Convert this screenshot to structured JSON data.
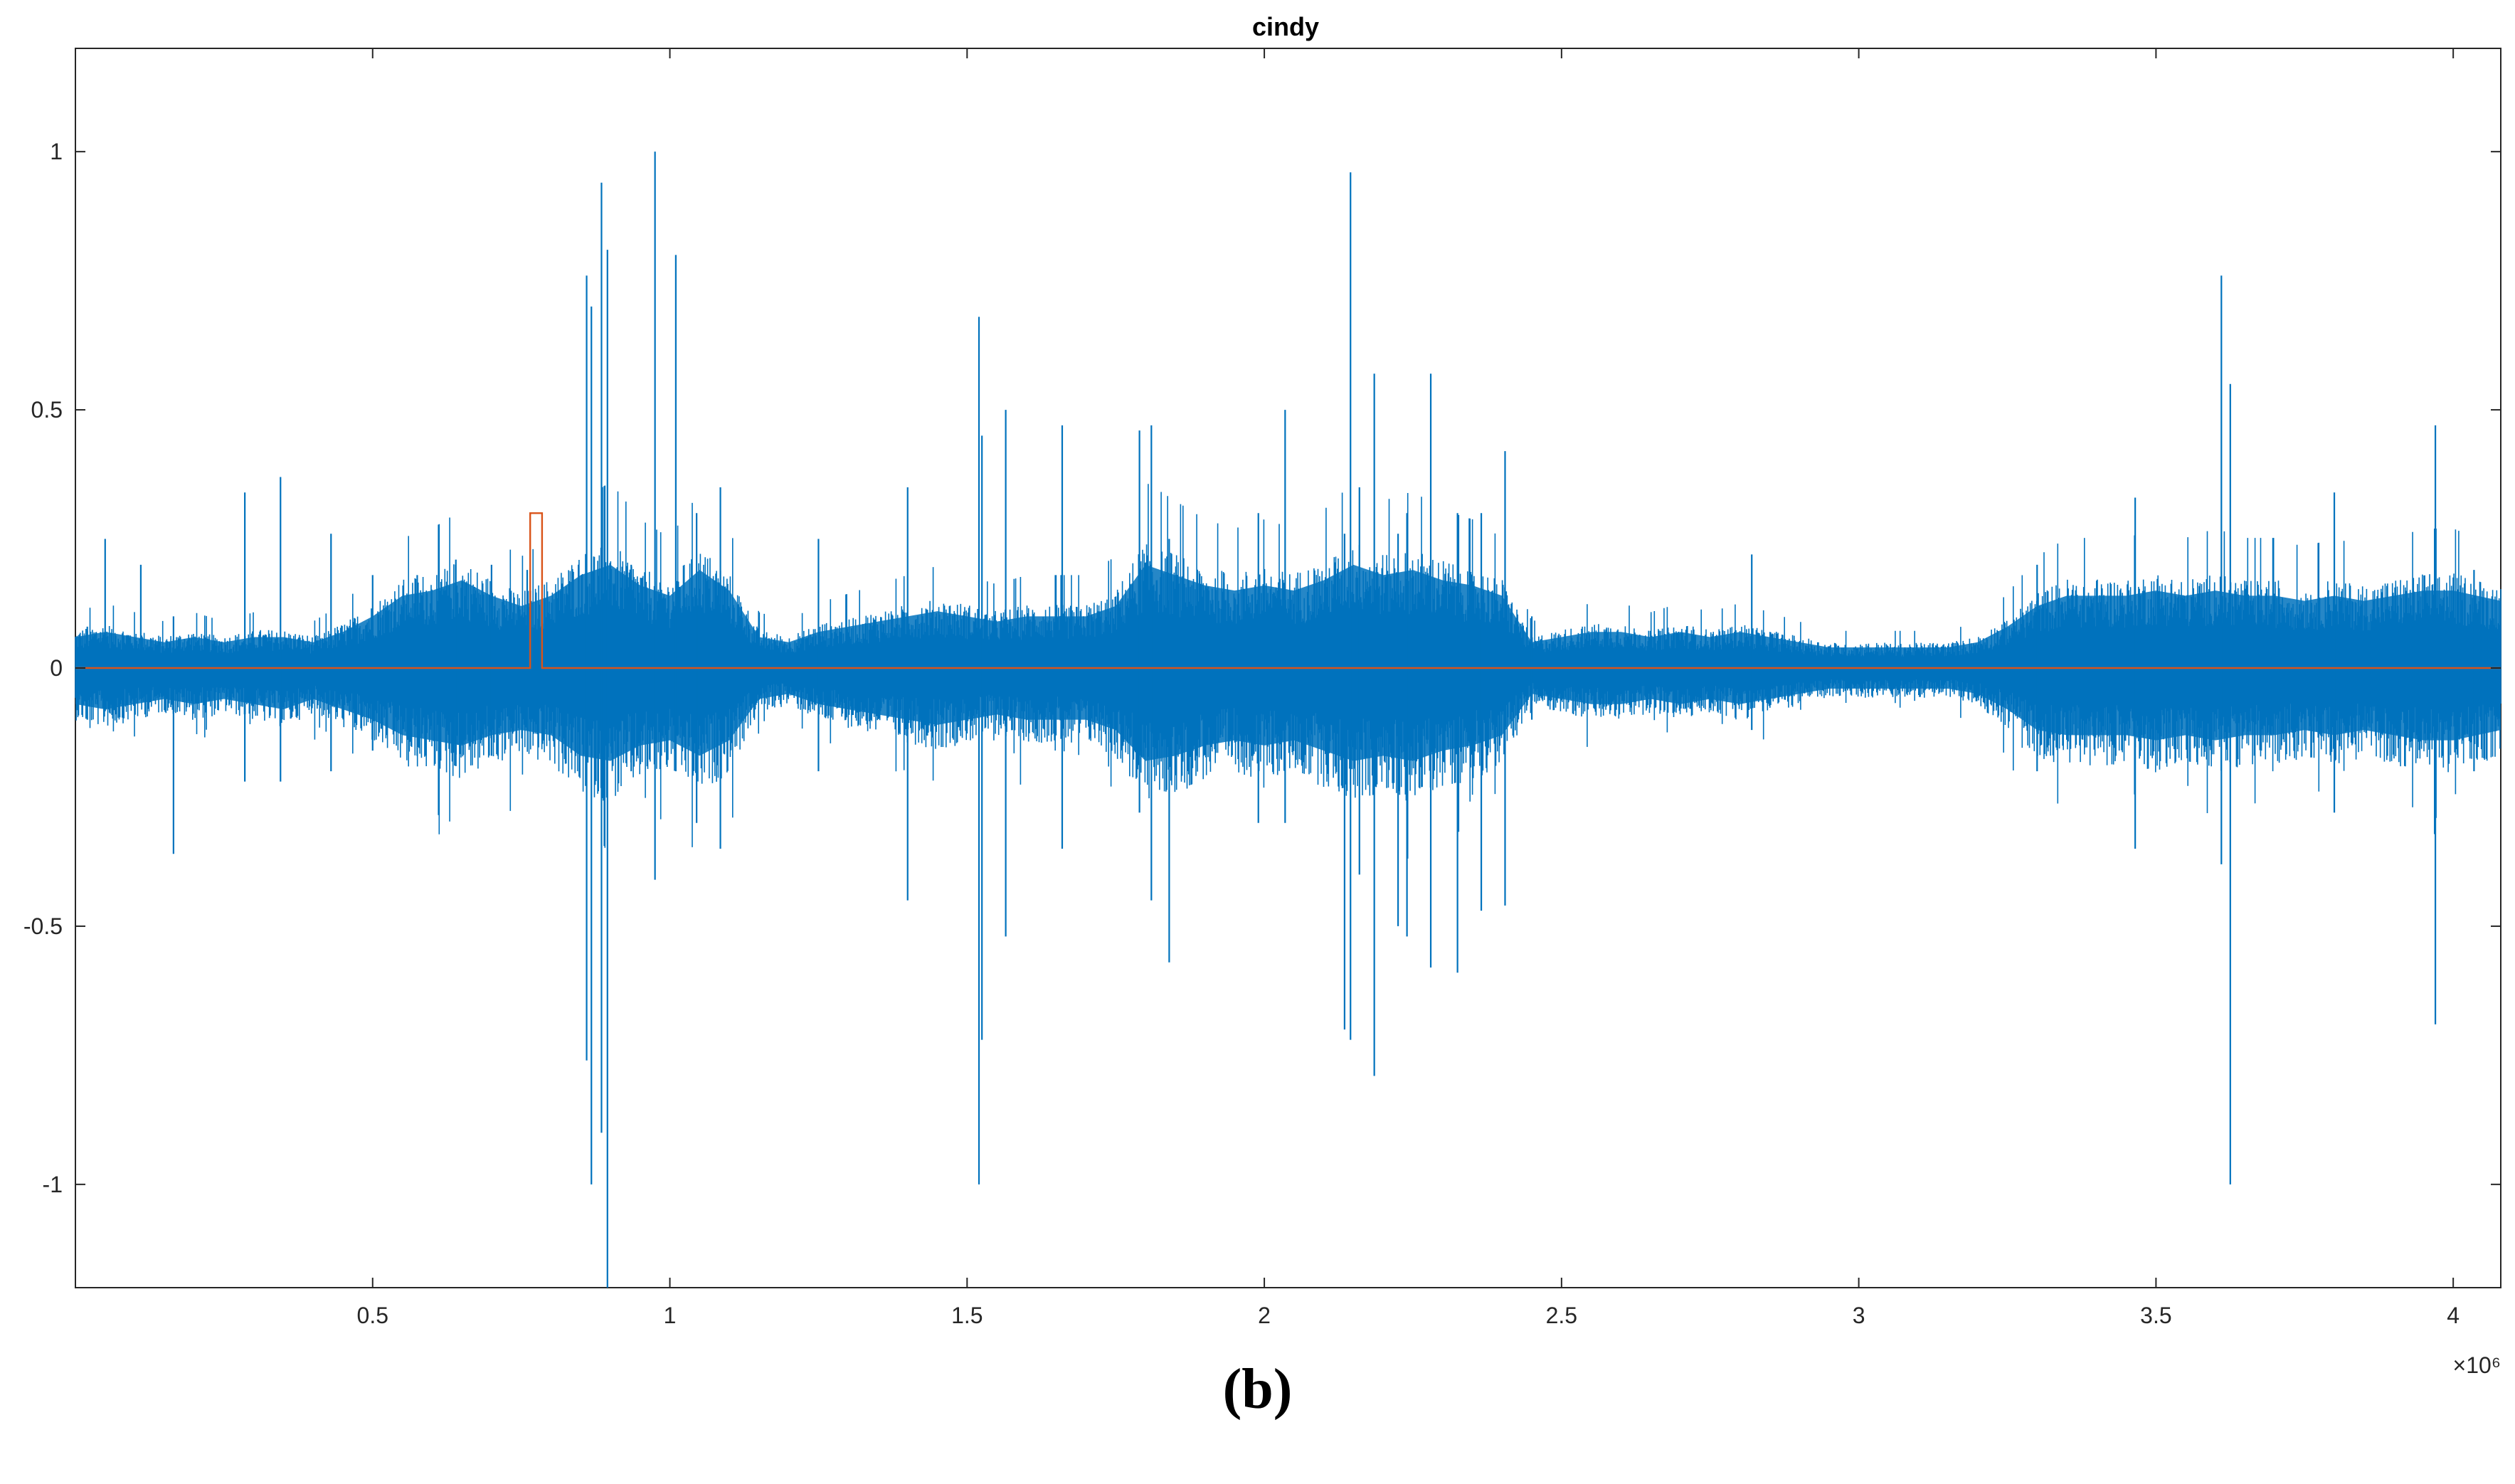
{
  "chart_data": {
    "type": "line",
    "title": "cindy",
    "xlabel": "",
    "ylabel": "",
    "xlim": [
      0,
      4080000
    ],
    "ylim": [
      -1.2,
      1.2
    ],
    "x_exponent_label": "×10⁶",
    "x_ticks": [
      {
        "value": 500000,
        "label": "0.5"
      },
      {
        "value": 1000000,
        "label": "1"
      },
      {
        "value": 1500000,
        "label": "1.5"
      },
      {
        "value": 2000000,
        "label": "2"
      },
      {
        "value": 2500000,
        "label": "2.5"
      },
      {
        "value": 3000000,
        "label": "3"
      },
      {
        "value": 3500000,
        "label": "3.5"
      },
      {
        "value": 4000000,
        "label": "4"
      }
    ],
    "y_ticks": [
      {
        "value": 1,
        "label": "1"
      },
      {
        "value": 0.5,
        "label": "0.5"
      },
      {
        "value": 0,
        "label": "0"
      },
      {
        "value": -0.5,
        "label": "-0.5"
      },
      {
        "value": -1,
        "label": "-1"
      }
    ],
    "grid": false,
    "series": [
      {
        "color": "#0072BD",
        "envelope": [
          [
            0,
            0.06,
            -0.07
          ],
          [
            50000,
            0.07,
            -0.08
          ],
          [
            100000,
            0.06,
            -0.07
          ],
          [
            150000,
            0.05,
            -0.06
          ],
          [
            200000,
            0.06,
            -0.07
          ],
          [
            250000,
            0.05,
            -0.06
          ],
          [
            300000,
            0.06,
            -0.07
          ],
          [
            350000,
            0.06,
            -0.08
          ],
          [
            400000,
            0.05,
            -0.06
          ],
          [
            450000,
            0.07,
            -0.08
          ],
          [
            500000,
            0.1,
            -0.1
          ],
          [
            550000,
            0.14,
            -0.13
          ],
          [
            600000,
            0.15,
            -0.14
          ],
          [
            650000,
            0.17,
            -0.15
          ],
          [
            700000,
            0.14,
            -0.13
          ],
          [
            750000,
            0.12,
            -0.12
          ],
          [
            800000,
            0.14,
            -0.13
          ],
          [
            850000,
            0.18,
            -0.17
          ],
          [
            900000,
            0.2,
            -0.18
          ],
          [
            950000,
            0.16,
            -0.15
          ],
          [
            1000000,
            0.14,
            -0.14
          ],
          [
            1050000,
            0.19,
            -0.17
          ],
          [
            1100000,
            0.15,
            -0.14
          ],
          [
            1150000,
            0.06,
            -0.06
          ],
          [
            1200000,
            0.05,
            -0.05
          ],
          [
            1250000,
            0.07,
            -0.07
          ],
          [
            1300000,
            0.08,
            -0.08
          ],
          [
            1350000,
            0.09,
            -0.09
          ],
          [
            1400000,
            0.1,
            -0.1
          ],
          [
            1450000,
            0.11,
            -0.11
          ],
          [
            1500000,
            0.1,
            -0.1
          ],
          [
            1550000,
            0.09,
            -0.09
          ],
          [
            1600000,
            0.1,
            -0.1
          ],
          [
            1650000,
            0.1,
            -0.1
          ],
          [
            1700000,
            0.1,
            -0.1
          ],
          [
            1750000,
            0.12,
            -0.12
          ],
          [
            1800000,
            0.2,
            -0.18
          ],
          [
            1850000,
            0.18,
            -0.17
          ],
          [
            1900000,
            0.16,
            -0.15
          ],
          [
            1950000,
            0.15,
            -0.14
          ],
          [
            2000000,
            0.16,
            -0.15
          ],
          [
            2050000,
            0.15,
            -0.14
          ],
          [
            2100000,
            0.17,
            -0.16
          ],
          [
            2150000,
            0.2,
            -0.18
          ],
          [
            2200000,
            0.18,
            -0.17
          ],
          [
            2250000,
            0.19,
            -0.18
          ],
          [
            2300000,
            0.17,
            -0.16
          ],
          [
            2350000,
            0.16,
            -0.15
          ],
          [
            2400000,
            0.14,
            -0.13
          ],
          [
            2450000,
            0.05,
            -0.05
          ],
          [
            2500000,
            0.06,
            -0.06
          ],
          [
            2550000,
            0.07,
            -0.07
          ],
          [
            2600000,
            0.07,
            -0.07
          ],
          [
            2650000,
            0.06,
            -0.06
          ],
          [
            2700000,
            0.07,
            -0.07
          ],
          [
            2750000,
            0.06,
            -0.06
          ],
          [
            2800000,
            0.07,
            -0.07
          ],
          [
            2850000,
            0.06,
            -0.06
          ],
          [
            2900000,
            0.05,
            -0.05
          ],
          [
            2950000,
            0.04,
            -0.04
          ],
          [
            3000000,
            0.04,
            -0.04
          ],
          [
            3050000,
            0.04,
            -0.04
          ],
          [
            3100000,
            0.04,
            -0.04
          ],
          [
            3150000,
            0.04,
            -0.04
          ],
          [
            3200000,
            0.05,
            -0.05
          ],
          [
            3250000,
            0.08,
            -0.08
          ],
          [
            3300000,
            0.12,
            -0.12
          ],
          [
            3350000,
            0.14,
            -0.13
          ],
          [
            3400000,
            0.14,
            -0.13
          ],
          [
            3450000,
            0.14,
            -0.13
          ],
          [
            3500000,
            0.15,
            -0.14
          ],
          [
            3550000,
            0.14,
            -0.13
          ],
          [
            3600000,
            0.15,
            -0.14
          ],
          [
            3650000,
            0.14,
            -0.13
          ],
          [
            3700000,
            0.14,
            -0.13
          ],
          [
            3750000,
            0.13,
            -0.12
          ],
          [
            3800000,
            0.14,
            -0.13
          ],
          [
            3850000,
            0.13,
            -0.12
          ],
          [
            3900000,
            0.14,
            -0.13
          ],
          [
            3950000,
            0.15,
            -0.14
          ],
          [
            4000000,
            0.15,
            -0.14
          ],
          [
            4080000,
            0.13,
            -0.12
          ]
        ],
        "spikes": [
          [
            20000,
            0.08,
            -0.1
          ],
          [
            50000,
            0.25,
            -0.08
          ],
          [
            110000,
            0.2,
            -0.06
          ],
          [
            165000,
            0.1,
            -0.36
          ],
          [
            285000,
            0.34,
            -0.22
          ],
          [
            345000,
            0.37,
            -0.22
          ],
          [
            430000,
            0.26,
            -0.2
          ],
          [
            500000,
            0.18,
            -0.16
          ],
          [
            575000,
            0.18,
            -0.17
          ],
          [
            640000,
            0.21,
            -0.19
          ],
          [
            700000,
            0.2,
            -0.17
          ],
          [
            760000,
            0.19,
            -0.12
          ],
          [
            860000,
            0.76,
            -0.76
          ],
          [
            868000,
            0.7,
            -1
          ],
          [
            885000,
            0.94,
            -0.9
          ],
          [
            895000,
            0.81,
            -1.2
          ],
          [
            935000,
            0.2,
            -0.2
          ],
          [
            975000,
            1.0,
            -0.41
          ],
          [
            1010000,
            0.8,
            -0.2
          ],
          [
            1045000,
            0.3,
            -0.3
          ],
          [
            1085000,
            0.35,
            -0.35
          ],
          [
            1250000,
            0.25,
            -0.2
          ],
          [
            1400000,
            0.35,
            -0.45
          ],
          [
            1520000,
            0.68,
            -1.0
          ],
          [
            1525000,
            0.45,
            -0.72
          ],
          [
            1565000,
            0.5,
            -0.52
          ],
          [
            1660000,
            0.47,
            -0.35
          ],
          [
            1790000,
            0.46,
            -0.28
          ],
          [
            1810000,
            0.47,
            -0.45
          ],
          [
            1840000,
            0.25,
            -0.57
          ],
          [
            1990000,
            0.3,
            -0.3
          ],
          [
            2035000,
            0.5,
            -0.3
          ],
          [
            2135000,
            0.26,
            -0.7
          ],
          [
            2145000,
            0.96,
            -0.72
          ],
          [
            2160000,
            0.35,
            -0.4
          ],
          [
            2185000,
            0.57,
            -0.79
          ],
          [
            2225000,
            0.26,
            -0.5
          ],
          [
            2240000,
            0.3,
            -0.52
          ],
          [
            2280000,
            0.57,
            -0.58
          ],
          [
            2325000,
            0.3,
            -0.59
          ],
          [
            2365000,
            0.3,
            -0.47
          ],
          [
            2405000,
            0.42,
            -0.46
          ],
          [
            2450000,
            0.1,
            -0.1
          ],
          [
            2820000,
            0.22,
            -0.12
          ],
          [
            3300000,
            0.2,
            -0.2
          ],
          [
            3465000,
            0.33,
            -0.35
          ],
          [
            3610000,
            0.76,
            -0.38
          ],
          [
            3625000,
            0.55,
            -1.0
          ],
          [
            3800000,
            0.34,
            -0.28
          ],
          [
            3970000,
            0.47,
            -0.69
          ],
          [
            4035000,
            0.19,
            -0.2
          ]
        ]
      },
      {
        "color": "#D95319",
        "x": [
          0,
          765000,
          765000,
          785000,
          785000,
          4080000
        ],
        "y": [
          0,
          0,
          0.3,
          0.3,
          0,
          0
        ]
      }
    ]
  }
}
